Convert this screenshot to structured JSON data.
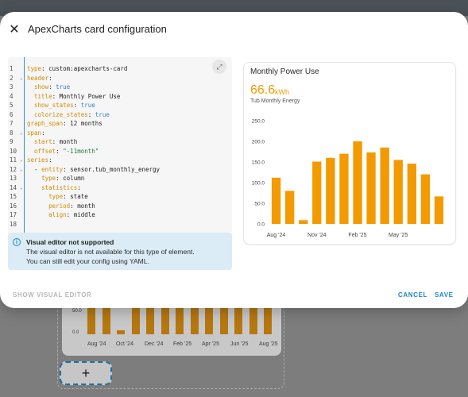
{
  "dialog": {
    "title": "ApexCharts card configuration",
    "close_icon": "close-icon",
    "expand_icon": "fullscreen-icon"
  },
  "editor": {
    "line_numbers": [
      "1",
      "2",
      "3",
      "4",
      "5",
      "6",
      "7",
      "8",
      "9",
      "10",
      "11",
      "12",
      "13",
      "14",
      "15",
      "16",
      "17",
      "18"
    ],
    "fold_lines": [
      2,
      8,
      11,
      12,
      14
    ],
    "lines": [
      [
        {
          "t": "key",
          "v": "type"
        },
        {
          "t": "plain",
          "v": ": custom:apexcharts-card"
        }
      ],
      [
        {
          "t": "key",
          "v": "header"
        },
        {
          "t": "plain",
          "v": ":"
        }
      ],
      [
        {
          "t": "plain",
          "v": "  "
        },
        {
          "t": "key",
          "v": "show"
        },
        {
          "t": "plain",
          "v": ": "
        },
        {
          "t": "bool",
          "v": "true"
        }
      ],
      [
        {
          "t": "plain",
          "v": "  "
        },
        {
          "t": "key",
          "v": "title"
        },
        {
          "t": "plain",
          "v": ": Monthly Power Use"
        }
      ],
      [
        {
          "t": "plain",
          "v": "  "
        },
        {
          "t": "key",
          "v": "show_states"
        },
        {
          "t": "plain",
          "v": ": "
        },
        {
          "t": "bool",
          "v": "true"
        }
      ],
      [
        {
          "t": "plain",
          "v": "  "
        },
        {
          "t": "key",
          "v": "colorize_states"
        },
        {
          "t": "plain",
          "v": ": "
        },
        {
          "t": "bool",
          "v": "true"
        }
      ],
      [
        {
          "t": "key",
          "v": "graph_span"
        },
        {
          "t": "plain",
          "v": ": 12 months"
        }
      ],
      [
        {
          "t": "key",
          "v": "span"
        },
        {
          "t": "plain",
          "v": ":"
        }
      ],
      [
        {
          "t": "plain",
          "v": "  "
        },
        {
          "t": "key",
          "v": "start"
        },
        {
          "t": "plain",
          "v": ": month"
        }
      ],
      [
        {
          "t": "plain",
          "v": "  "
        },
        {
          "t": "key",
          "v": "offset"
        },
        {
          "t": "plain",
          "v": ": "
        },
        {
          "t": "str",
          "v": "\"-11month\""
        }
      ],
      [
        {
          "t": "key",
          "v": "series"
        },
        {
          "t": "plain",
          "v": ":"
        }
      ],
      [
        {
          "t": "plain",
          "v": "  - "
        },
        {
          "t": "key",
          "v": "entity"
        },
        {
          "t": "plain",
          "v": ": sensor.tub_monthly_energy"
        }
      ],
      [
        {
          "t": "plain",
          "v": "    "
        },
        {
          "t": "key",
          "v": "type"
        },
        {
          "t": "plain",
          "v": ": column"
        }
      ],
      [
        {
          "t": "plain",
          "v": "    "
        },
        {
          "t": "key",
          "v": "statistics"
        },
        {
          "t": "plain",
          "v": ":"
        }
      ],
      [
        {
          "t": "plain",
          "v": "      "
        },
        {
          "t": "key",
          "v": "type"
        },
        {
          "t": "plain",
          "v": ": state"
        }
      ],
      [
        {
          "t": "plain",
          "v": "      "
        },
        {
          "t": "key",
          "v": "period"
        },
        {
          "t": "plain",
          "v": ": month"
        }
      ],
      [
        {
          "t": "plain",
          "v": "      "
        },
        {
          "t": "key",
          "v": "align"
        },
        {
          "t": "plain",
          "v": ": middle"
        }
      ],
      []
    ]
  },
  "alert": {
    "icon": "info-icon",
    "title": "Visual editor not supported",
    "line1": "The visual editor is not available for this type of element.",
    "line2": "You can still edit your config using YAML."
  },
  "preview": {
    "title": "Monthly Power Use",
    "state_value": "66.6",
    "state_unit": "kWh",
    "state_name": "Tub Monthly Energy"
  },
  "chart_data": {
    "type": "bar",
    "title": "Monthly Power Use",
    "series": [
      {
        "name": "Tub Monthly Energy",
        "values": [
          112,
          80,
          9,
          151,
          160,
          170,
          200,
          173,
          185,
          155,
          146,
          120,
          66.6
        ]
      }
    ],
    "x_tick_labels": [
      "Aug '24",
      "Nov '24",
      "Feb '25",
      "May '25"
    ],
    "y_ticks": [
      0.0,
      50.0,
      100.0,
      150.0,
      200.0,
      250.0
    ],
    "y_tick_labels": [
      "0.0",
      "50.0",
      "100.0",
      "150.0",
      "200.0",
      "250.0"
    ],
    "ylim": [
      0,
      250
    ],
    "bar_color": "#f39a00",
    "grid": false
  },
  "background_chart": {
    "values": [
      60,
      65,
      9,
      55,
      58,
      60,
      62,
      60,
      61,
      58,
      55,
      52,
      48
    ],
    "x_tick_labels": [
      "Aug '24",
      "Oct '24",
      "Dec '24",
      "Feb '25",
      "Apr '25",
      "Jun '25",
      "Aug '25"
    ],
    "y_tick_labels": [
      "50.0",
      "0.0"
    ]
  },
  "add_card": {
    "label": "+"
  },
  "footer": {
    "show_visual_label": "SHOW VISUAL EDITOR",
    "cancel_label": "CANCEL",
    "save_label": "SAVE"
  },
  "colors": {
    "accent": "#1e87c9",
    "bar": "#f39a00",
    "yaml_key": "#d58a00",
    "yaml_bool": "#3d7bd0",
    "yaml_string": "#1f7a3d"
  }
}
